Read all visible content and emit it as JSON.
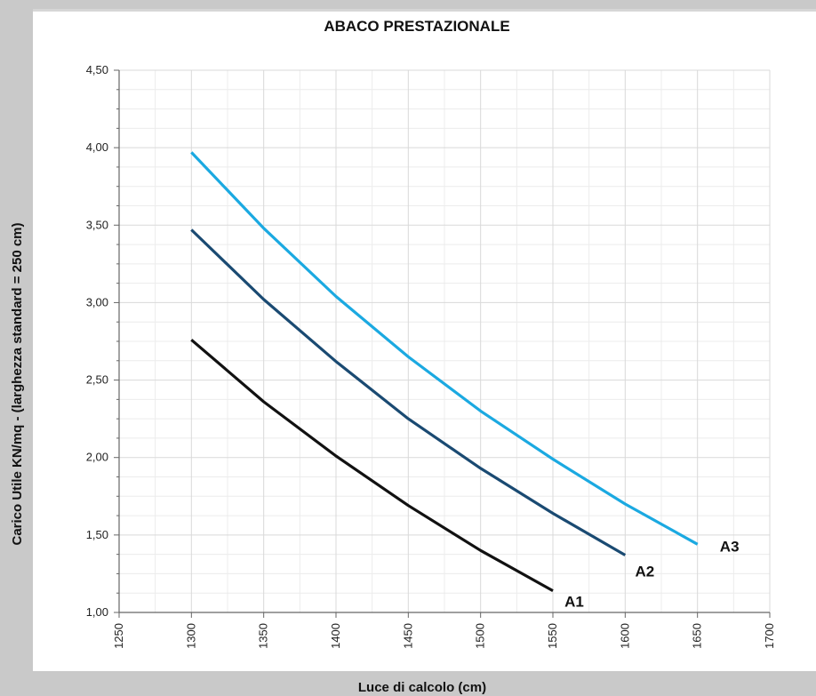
{
  "chart_data": {
    "type": "line",
    "title": "ABACO PRESTAZIONALE",
    "xlabel": "Luce di calcolo (cm)",
    "ylabel": "Carico Utile KN/mq - (larghezza standard = 250 cm)",
    "xlim": [
      1250,
      1700
    ],
    "ylim": [
      1.0,
      4.5
    ],
    "x_ticks": [
      "1250",
      "1300",
      "1350",
      "1400",
      "1450",
      "1500",
      "1550",
      "1600",
      "1650",
      "1700"
    ],
    "y_ticks": [
      "1,00",
      "1,50",
      "2,00",
      "2,50",
      "3,00",
      "3,50",
      "4,00",
      "4,50"
    ],
    "grid": true,
    "series": [
      {
        "name": "A1",
        "color": "#111111",
        "x": [
          1300,
          1350,
          1400,
          1450,
          1500,
          1550
        ],
        "y": [
          2.76,
          2.36,
          2.01,
          1.69,
          1.4,
          1.14
        ]
      },
      {
        "name": "A2",
        "color": "#1a4a72",
        "x": [
          1300,
          1350,
          1400,
          1450,
          1500,
          1550,
          1600
        ],
        "y": [
          3.47,
          3.02,
          2.62,
          2.25,
          1.93,
          1.64,
          1.37
        ]
      },
      {
        "name": "A3",
        "color": "#1ba9e1",
        "x": [
          1300,
          1350,
          1400,
          1450,
          1500,
          1550,
          1600,
          1650
        ],
        "y": [
          3.97,
          3.48,
          3.04,
          2.65,
          2.3,
          1.99,
          1.7,
          1.44
        ]
      }
    ]
  }
}
